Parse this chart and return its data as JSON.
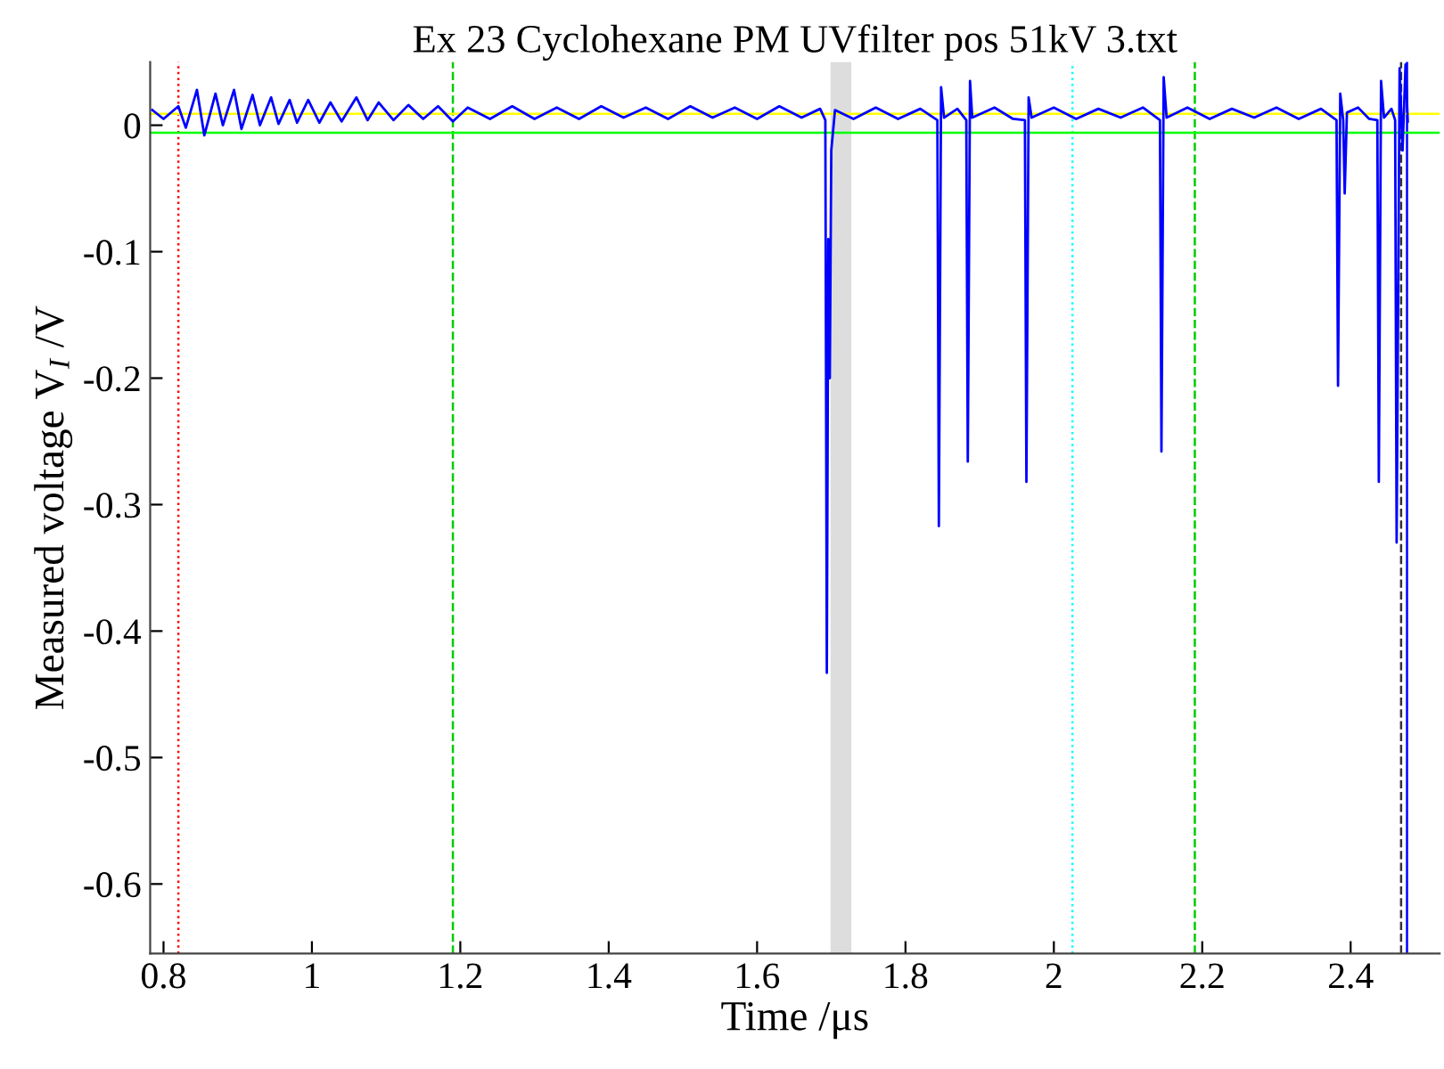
{
  "chart_data": {
    "type": "line",
    "title": "Ex 23 Cyclohexane PM UVfilter pos 51kV 3.txt",
    "xlabel": "Time /μs",
    "ylabel": "Measured voltage V$_{I}$ /V",
    "xlim": [
      0.782,
      2.52
    ],
    "ylim": [
      -0.655,
      0.05
    ],
    "xticks": [
      0.8,
      1,
      1.2,
      1.4,
      1.6,
      1.8,
      2,
      2.2,
      2.4
    ],
    "yticks": [
      -0.6,
      -0.5,
      -0.4,
      -0.3,
      -0.2,
      -0.1,
      0
    ],
    "grid": false,
    "marker": "none",
    "line_style": "solid",
    "series": [
      {
        "color": "#0000ff",
        "x": [
          0.785,
          0.8,
          0.82,
          0.83,
          0.845,
          0.855,
          0.87,
          0.88,
          0.895,
          0.905,
          0.92,
          0.93,
          0.945,
          0.955,
          0.97,
          0.98,
          0.995,
          1.01,
          1.025,
          1.04,
          1.06,
          1.075,
          1.09,
          1.11,
          1.13,
          1.15,
          1.17,
          1.19,
          1.21,
          1.24,
          1.27,
          1.3,
          1.33,
          1.36,
          1.39,
          1.42,
          1.45,
          1.48,
          1.51,
          1.54,
          1.57,
          1.6,
          1.63,
          1.66,
          1.685,
          1.692,
          1.694,
          1.696,
          1.698,
          1.7,
          1.705,
          1.73,
          1.76,
          1.79,
          1.82,
          1.843,
          1.845,
          1.848,
          1.852,
          1.87,
          1.882,
          1.884,
          1.887,
          1.89,
          1.92,
          1.945,
          1.961,
          1.963,
          1.966,
          1.97,
          2.0,
          2.03,
          2.06,
          2.09,
          2.12,
          2.143,
          2.145,
          2.148,
          2.152,
          2.18,
          2.21,
          2.24,
          2.27,
          2.3,
          2.33,
          2.36,
          2.381,
          2.383,
          2.386,
          2.39,
          2.392,
          2.395,
          2.41,
          2.425,
          2.436,
          2.438,
          2.441,
          2.445,
          2.455,
          2.46,
          2.462,
          2.466,
          2.47,
          2.474,
          2.477
        ],
        "values": [
          0.012,
          0.005,
          0.015,
          -0.002,
          0.028,
          -0.008,
          0.025,
          0.0,
          0.028,
          -0.003,
          0.024,
          0.0,
          0.022,
          0.001,
          0.02,
          0.002,
          0.02,
          0.002,
          0.018,
          0.003,
          0.022,
          0.004,
          0.018,
          0.004,
          0.016,
          0.005,
          0.015,
          0.003,
          0.014,
          0.005,
          0.015,
          0.005,
          0.014,
          0.005,
          0.015,
          0.006,
          0.014,
          0.005,
          0.015,
          0.006,
          0.014,
          0.005,
          0.015,
          0.006,
          0.013,
          0.004,
          -0.433,
          -0.09,
          -0.2,
          -0.02,
          0.012,
          0.005,
          0.014,
          0.005,
          0.013,
          0.004,
          -0.317,
          0.03,
          0.006,
          0.013,
          0.004,
          -0.266,
          0.035,
          0.006,
          0.014,
          0.005,
          0.004,
          -0.282,
          0.022,
          0.006,
          0.014,
          0.005,
          0.013,
          0.006,
          0.014,
          0.004,
          -0.258,
          0.038,
          0.006,
          0.014,
          0.005,
          0.013,
          0.006,
          0.014,
          0.005,
          0.013,
          0.004,
          -0.206,
          0.025,
          0.004,
          -0.054,
          0.01,
          0.014,
          0.005,
          0.004,
          -0.282,
          0.035,
          0.006,
          0.013,
          0.004,
          -0.33,
          0.045,
          -0.02,
          0.048,
          0.003
        ]
      }
    ],
    "ref_lines": [
      {
        "axis": "x",
        "value": 0.82,
        "color": "#ff0000",
        "line_style": "dotted"
      },
      {
        "axis": "x",
        "value": 1.19,
        "color": "#00cc00",
        "line_style": "dashed"
      },
      {
        "axis": "x",
        "value": 2.025,
        "color": "#00ffff",
        "line_style": "dotted"
      },
      {
        "axis": "x",
        "value": 2.19,
        "color": "#00cc00",
        "line_style": "dashed"
      },
      {
        "axis": "x",
        "value": 2.468,
        "color": "#333333",
        "line_style": "dashed"
      },
      {
        "axis": "x",
        "value": 2.476,
        "color": "#0000ff",
        "line_style": "solid"
      },
      {
        "axis": "y",
        "value": 0.009,
        "color": "#ffff00",
        "line_style": "solid"
      },
      {
        "axis": "y",
        "value": -0.006,
        "color": "#00ff00",
        "line_style": "solid"
      }
    ],
    "bands": [
      {
        "axis": "x",
        "from": 1.699,
        "to": 1.727,
        "color": "#dddddd"
      }
    ]
  }
}
